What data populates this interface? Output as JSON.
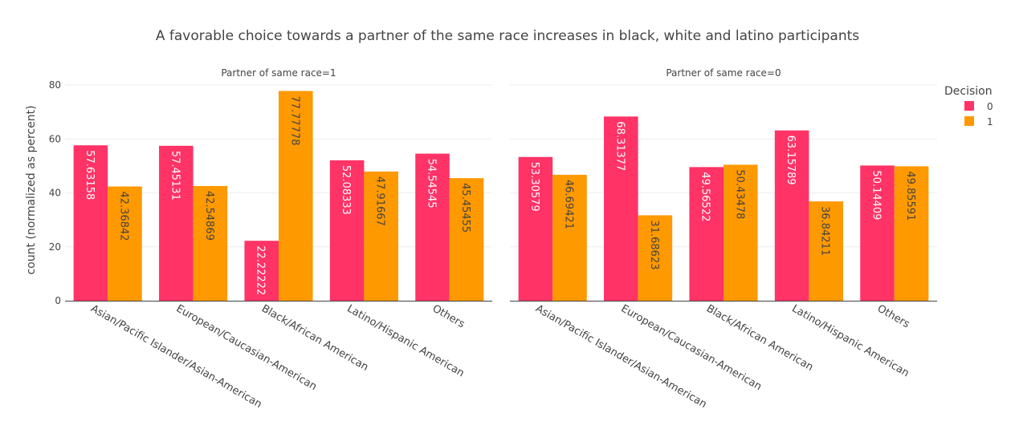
{
  "chart_data": {
    "type": "bar",
    "title": "A favorable choice towards a partner of the same race increases in black, white and latino participants",
    "ylabel": "count (normalized as percent)",
    "ylim": [
      0,
      80
    ],
    "yticks": [
      0,
      20,
      40,
      60,
      80
    ],
    "grid": true,
    "legend": {
      "title": "Decision",
      "position": "top-right"
    },
    "categories": [
      "Asian/Pacific Islander/Asian-American",
      "European/Caucasian-American",
      "Black/African American",
      "Latino/Hispanic American",
      "Others"
    ],
    "series": [
      {
        "name": "0",
        "color": "#FF3366"
      },
      {
        "name": "1",
        "color": "#FF9900"
      }
    ],
    "panels": [
      {
        "subtitle": "Partner of same race=1",
        "series": [
          {
            "name": "0",
            "values": [
              57.63158,
              57.45131,
              22.22222,
              52.08333,
              54.54545
            ],
            "labels": [
              "57.63158",
              "57.45131",
              "22.22222",
              "52.08333",
              "54.54545"
            ]
          },
          {
            "name": "1",
            "values": [
              42.36842,
              42.54869,
              77.77778,
              47.91667,
              45.45455
            ],
            "labels": [
              "42.36842",
              "42.54869",
              "77.77778",
              "47.91667",
              "45.45455"
            ]
          }
        ]
      },
      {
        "subtitle": "Partner of same race=0",
        "series": [
          {
            "name": "0",
            "values": [
              53.30579,
              68.31377,
              49.56522,
              63.15789,
              50.14409
            ],
            "labels": [
              "53.30579",
              "68.31377",
              "49.56522",
              "63.15789",
              "50.14409"
            ]
          },
          {
            "name": "1",
            "values": [
              46.69421,
              31.68623,
              50.43478,
              36.84211,
              49.85591
            ],
            "labels": [
              "46.69421",
              "31.68623",
              "50.43478",
              "36.84211",
              "49.85591"
            ]
          }
        ]
      }
    ]
  }
}
